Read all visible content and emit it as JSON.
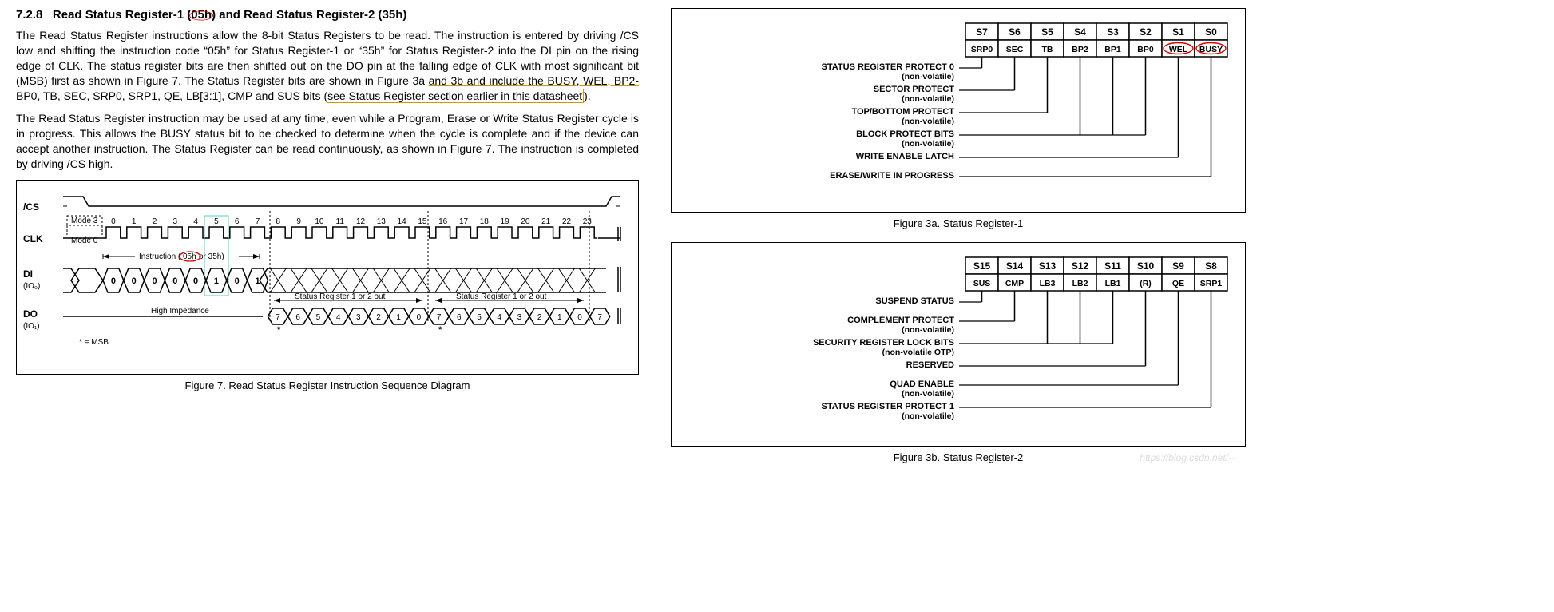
{
  "heading": {
    "num": "7.2.8",
    "t1": "Read Status Register-1 (",
    "code1": "05h",
    "t2": ") and Read Status Register-2 (35h)"
  },
  "para1": "The Read Status Register instructions allow the 8-bit Status Registers to be read. The instruction is entered by driving /CS low and shifting the instruction code “05h” for Status Register-1 or “35h” for Status Register-2 into the DI pin on the rising edge of CLK. The status register bits are then shifted out on the DO pin at the falling edge of CLK with most significant bit (MSB) first as shown in Figure 7. The Status Register bits are shown in Figure 3a ",
  "para1u": "and 3b and include the BUSY, WEL, BP2-BP0, TB,",
  "para1b": " SEC, SRP0, SRP1, QE, LB[3:1], CMP and SUS bits (",
  "para1c": "see Status Register section earlier in this datasheet",
  "para1d": ").",
  "para2": "The Read Status Register instruction may be used at any time, even while a Program, Erase or Write Status Register cycle is in progress. This allows the BUSY status bit to be checked to determine when the cycle is complete and if the device can accept another instruction. The Status Register can be read continuously, as shown in Figure 7. The instruction is completed by driving /CS high.",
  "fig7_caption": "Figure 7. Read Status Register Instruction Sequence Diagram",
  "fig3a_caption": "Figure 3a. Status Register-1",
  "fig3b_caption": "Figure 3b. Status Register-2",
  "timing": {
    "labels": {
      "cs": "/CS",
      "clk": "CLK",
      "di": "DI",
      "di_sub": "(IO₀)",
      "do": "DO",
      "do_sub": "(IO₁)",
      "mode3": "Mode 3",
      "mode0": "Mode 0",
      "instr": "Instruction (05h or 35h)",
      "instr_circ": "05h",
      "hiz": "High Impedance",
      "sr_out": "Status Register 1 or 2 out",
      "msb": "* = MSB"
    },
    "clk_nums": [
      "0",
      "1",
      "2",
      "3",
      "4",
      "5",
      "6",
      "7",
      "8",
      "9",
      "10",
      "11",
      "12",
      "13",
      "14",
      "15",
      "16",
      "17",
      "18",
      "19",
      "20",
      "21",
      "22",
      "23"
    ],
    "di_bits": [
      "0",
      "0",
      "0",
      "0",
      "0",
      "1",
      "0",
      "1"
    ],
    "do_bits": [
      "7",
      "6",
      "5",
      "4",
      "3",
      "2",
      "1",
      "0",
      "7",
      "6",
      "5",
      "4",
      "3",
      "2",
      "1",
      "0",
      "7"
    ]
  },
  "reg1": {
    "heads": [
      "S7",
      "S6",
      "S5",
      "S4",
      "S3",
      "S2",
      "S1",
      "S0"
    ],
    "vals": [
      "SRP0",
      "SEC",
      "TB",
      "BP2",
      "BP1",
      "BP0",
      "WEL",
      "BUSY"
    ],
    "circled": [
      6,
      7
    ],
    "descs": [
      {
        "t": "STATUS REGISTER PROTECT 0",
        "s": "(non-volatile)",
        "col": 0
      },
      {
        "t": "SECTOR PROTECT",
        "s": "(non-volatile)",
        "col": 1
      },
      {
        "t": "TOP/BOTTOM PROTECT",
        "s": "(non-volatile)",
        "col": 2
      },
      {
        "t": "BLOCK PROTECT BITS",
        "s": "(non-volatile)",
        "col": 3,
        "span": 3
      },
      {
        "t": "WRITE ENABLE LATCH",
        "s": "",
        "col": 6
      },
      {
        "t": "ERASE/WRITE IN PROGRESS",
        "s": "",
        "col": 7
      }
    ]
  },
  "reg2": {
    "heads": [
      "S15",
      "S14",
      "S13",
      "S12",
      "S11",
      "S10",
      "S9",
      "S8"
    ],
    "vals": [
      "SUS",
      "CMP",
      "LB3",
      "LB2",
      "LB1",
      "(R)",
      "QE",
      "SRP1"
    ],
    "circled": [],
    "descs": [
      {
        "t": "SUSPEND STATUS",
        "s": "",
        "col": 0
      },
      {
        "t": "COMPLEMENT PROTECT",
        "s": "(non-volatile)",
        "col": 1
      },
      {
        "t": "SECURITY REGISTER LOCK BITS",
        "s": "(non-volatile OTP)",
        "col": 2,
        "span": 3
      },
      {
        "t": "RESERVED",
        "s": "",
        "col": 5
      },
      {
        "t": "QUAD ENABLE",
        "s": "(non-volatile)",
        "col": 6
      },
      {
        "t": "STATUS REGISTER PROTECT 1",
        "s": "(non-volatile)",
        "col": 7
      }
    ]
  },
  "colors": {
    "highlight": "#d00",
    "annot": "#c90",
    "cyan": "#5cc"
  }
}
